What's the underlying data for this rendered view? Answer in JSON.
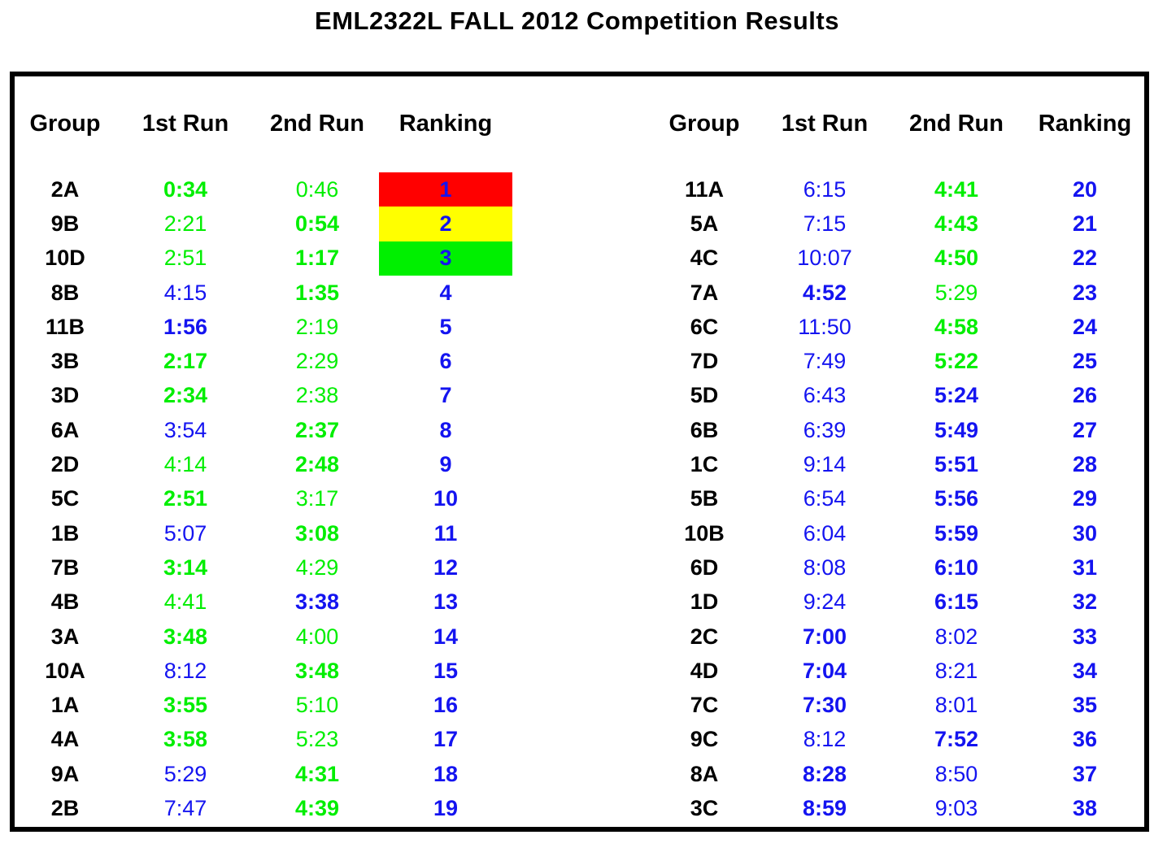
{
  "title": "EML2322L FALL 2012 Competition Results",
  "columns": {
    "group": "Group",
    "run1": "1st Run",
    "run2": "2nd Run",
    "ranking": "Ranking"
  },
  "colors": {
    "time_green": "#00ee00",
    "time_blue": "#1414f0",
    "group_black": "#000000",
    "rank1_bg": "#ff0000",
    "rank2_bg": "#ffff00",
    "rank3_bg": "#00f000"
  },
  "left_table": {
    "rows": [
      {
        "group": "2A",
        "run1": {
          "t": "0:34",
          "c": "green",
          "b": true
        },
        "run2": {
          "t": "0:46",
          "c": "green",
          "b": false
        },
        "rank": {
          "v": "1",
          "bg": "red"
        }
      },
      {
        "group": "9B",
        "run1": {
          "t": "2:21",
          "c": "green",
          "b": false
        },
        "run2": {
          "t": "0:54",
          "c": "green",
          "b": true
        },
        "rank": {
          "v": "2",
          "bg": "yellow"
        }
      },
      {
        "group": "10D",
        "run1": {
          "t": "2:51",
          "c": "green",
          "b": false
        },
        "run2": {
          "t": "1:17",
          "c": "green",
          "b": true
        },
        "rank": {
          "v": "3",
          "bg": "green"
        }
      },
      {
        "group": "8B",
        "run1": {
          "t": "4:15",
          "c": "blue",
          "b": false
        },
        "run2": {
          "t": "1:35",
          "c": "green",
          "b": true
        },
        "rank": {
          "v": "4",
          "bg": null
        }
      },
      {
        "group": "11B",
        "run1": {
          "t": "1:56",
          "c": "blue",
          "b": true
        },
        "run2": {
          "t": "2:19",
          "c": "green",
          "b": false
        },
        "rank": {
          "v": "5",
          "bg": null
        }
      },
      {
        "group": "3B",
        "run1": {
          "t": "2:17",
          "c": "green",
          "b": true
        },
        "run2": {
          "t": "2:29",
          "c": "green",
          "b": false
        },
        "rank": {
          "v": "6",
          "bg": null
        }
      },
      {
        "group": "3D",
        "run1": {
          "t": "2:34",
          "c": "green",
          "b": true
        },
        "run2": {
          "t": "2:38",
          "c": "green",
          "b": false
        },
        "rank": {
          "v": "7",
          "bg": null
        }
      },
      {
        "group": "6A",
        "run1": {
          "t": "3:54",
          "c": "blue",
          "b": false
        },
        "run2": {
          "t": "2:37",
          "c": "green",
          "b": true
        },
        "rank": {
          "v": "8",
          "bg": null
        }
      },
      {
        "group": "2D",
        "run1": {
          "t": "4:14",
          "c": "green",
          "b": false
        },
        "run2": {
          "t": "2:48",
          "c": "green",
          "b": true
        },
        "rank": {
          "v": "9",
          "bg": null
        }
      },
      {
        "group": "5C",
        "run1": {
          "t": "2:51",
          "c": "green",
          "b": true
        },
        "run2": {
          "t": "3:17",
          "c": "green",
          "b": false
        },
        "rank": {
          "v": "10",
          "bg": null
        }
      },
      {
        "group": "1B",
        "run1": {
          "t": "5:07",
          "c": "blue",
          "b": false
        },
        "run2": {
          "t": "3:08",
          "c": "green",
          "b": true
        },
        "rank": {
          "v": "11",
          "bg": null
        }
      },
      {
        "group": "7B",
        "run1": {
          "t": "3:14",
          "c": "green",
          "b": true
        },
        "run2": {
          "t": "4:29",
          "c": "green",
          "b": false
        },
        "rank": {
          "v": "12",
          "bg": null
        }
      },
      {
        "group": "4B",
        "run1": {
          "t": "4:41",
          "c": "green",
          "b": false
        },
        "run2": {
          "t": "3:38",
          "c": "blue",
          "b": true
        },
        "rank": {
          "v": "13",
          "bg": null
        }
      },
      {
        "group": "3A",
        "run1": {
          "t": "3:48",
          "c": "green",
          "b": true
        },
        "run2": {
          "t": "4:00",
          "c": "green",
          "b": false
        },
        "rank": {
          "v": "14",
          "bg": null
        }
      },
      {
        "group": "10A",
        "run1": {
          "t": "8:12",
          "c": "blue",
          "b": false
        },
        "run2": {
          "t": "3:48",
          "c": "green",
          "b": true
        },
        "rank": {
          "v": "15",
          "bg": null
        }
      },
      {
        "group": "1A",
        "run1": {
          "t": "3:55",
          "c": "green",
          "b": true
        },
        "run2": {
          "t": "5:10",
          "c": "green",
          "b": false
        },
        "rank": {
          "v": "16",
          "bg": null
        }
      },
      {
        "group": "4A",
        "run1": {
          "t": "3:58",
          "c": "green",
          "b": true
        },
        "run2": {
          "t": "5:23",
          "c": "green",
          "b": false
        },
        "rank": {
          "v": "17",
          "bg": null
        }
      },
      {
        "group": "9A",
        "run1": {
          "t": "5:29",
          "c": "blue",
          "b": false
        },
        "run2": {
          "t": "4:31",
          "c": "green",
          "b": true
        },
        "rank": {
          "v": "18",
          "bg": null
        }
      },
      {
        "group": "2B",
        "run1": {
          "t": "7:47",
          "c": "blue",
          "b": false
        },
        "run2": {
          "t": "4:39",
          "c": "green",
          "b": true
        },
        "rank": {
          "v": "19",
          "bg": null
        }
      }
    ]
  },
  "right_table": {
    "rows": [
      {
        "group": "11A",
        "run1": {
          "t": "6:15",
          "c": "blue",
          "b": false
        },
        "run2": {
          "t": "4:41",
          "c": "green",
          "b": true
        },
        "rank": {
          "v": "20",
          "bg": null
        }
      },
      {
        "group": "5A",
        "run1": {
          "t": "7:15",
          "c": "blue",
          "b": false
        },
        "run2": {
          "t": "4:43",
          "c": "green",
          "b": true
        },
        "rank": {
          "v": "21",
          "bg": null
        }
      },
      {
        "group": "4C",
        "run1": {
          "t": "10:07",
          "c": "blue",
          "b": false
        },
        "run2": {
          "t": "4:50",
          "c": "green",
          "b": true
        },
        "rank": {
          "v": "22",
          "bg": null
        }
      },
      {
        "group": "7A",
        "run1": {
          "t": "4:52",
          "c": "blue",
          "b": true
        },
        "run2": {
          "t": "5:29",
          "c": "green",
          "b": false
        },
        "rank": {
          "v": "23",
          "bg": null
        }
      },
      {
        "group": "6C",
        "run1": {
          "t": "11:50",
          "c": "blue",
          "b": false
        },
        "run2": {
          "t": "4:58",
          "c": "green",
          "b": true
        },
        "rank": {
          "v": "24",
          "bg": null
        }
      },
      {
        "group": "7D",
        "run1": {
          "t": "7:49",
          "c": "blue",
          "b": false
        },
        "run2": {
          "t": "5:22",
          "c": "green",
          "b": true
        },
        "rank": {
          "v": "25",
          "bg": null
        }
      },
      {
        "group": "5D",
        "run1": {
          "t": "6:43",
          "c": "blue",
          "b": false
        },
        "run2": {
          "t": "5:24",
          "c": "blue",
          "b": true
        },
        "rank": {
          "v": "26",
          "bg": null
        }
      },
      {
        "group": "6B",
        "run1": {
          "t": "6:39",
          "c": "blue",
          "b": false
        },
        "run2": {
          "t": "5:49",
          "c": "blue",
          "b": true
        },
        "rank": {
          "v": "27",
          "bg": null
        }
      },
      {
        "group": "1C",
        "run1": {
          "t": "9:14",
          "c": "blue",
          "b": false
        },
        "run2": {
          "t": "5:51",
          "c": "blue",
          "b": true
        },
        "rank": {
          "v": "28",
          "bg": null
        }
      },
      {
        "group": "5B",
        "run1": {
          "t": "6:54",
          "c": "blue",
          "b": false
        },
        "run2": {
          "t": "5:56",
          "c": "blue",
          "b": true
        },
        "rank": {
          "v": "29",
          "bg": null
        }
      },
      {
        "group": "10B",
        "run1": {
          "t": "6:04",
          "c": "blue",
          "b": false
        },
        "run2": {
          "t": "5:59",
          "c": "blue",
          "b": true
        },
        "rank": {
          "v": "30",
          "bg": null
        }
      },
      {
        "group": "6D",
        "run1": {
          "t": "8:08",
          "c": "blue",
          "b": false
        },
        "run2": {
          "t": "6:10",
          "c": "blue",
          "b": true
        },
        "rank": {
          "v": "31",
          "bg": null
        }
      },
      {
        "group": "1D",
        "run1": {
          "t": "9:24",
          "c": "blue",
          "b": false
        },
        "run2": {
          "t": "6:15",
          "c": "blue",
          "b": true
        },
        "rank": {
          "v": "32",
          "bg": null
        }
      },
      {
        "group": "2C",
        "run1": {
          "t": "7:00",
          "c": "blue",
          "b": true
        },
        "run2": {
          "t": "8:02",
          "c": "blue",
          "b": false
        },
        "rank": {
          "v": "33",
          "bg": null
        }
      },
      {
        "group": "4D",
        "run1": {
          "t": "7:04",
          "c": "blue",
          "b": true
        },
        "run2": {
          "t": "8:21",
          "c": "blue",
          "b": false
        },
        "rank": {
          "v": "34",
          "bg": null
        }
      },
      {
        "group": "7C",
        "run1": {
          "t": "7:30",
          "c": "blue",
          "b": true
        },
        "run2": {
          "t": "8:01",
          "c": "blue",
          "b": false
        },
        "rank": {
          "v": "35",
          "bg": null
        }
      },
      {
        "group": "9C",
        "run1": {
          "t": "8:12",
          "c": "blue",
          "b": false
        },
        "run2": {
          "t": "7:52",
          "c": "blue",
          "b": true
        },
        "rank": {
          "v": "36",
          "bg": null
        }
      },
      {
        "group": "8A",
        "run1": {
          "t": "8:28",
          "c": "blue",
          "b": true
        },
        "run2": {
          "t": "8:50",
          "c": "blue",
          "b": false
        },
        "rank": {
          "v": "37",
          "bg": null
        }
      },
      {
        "group": "3C",
        "run1": {
          "t": "8:59",
          "c": "blue",
          "b": true
        },
        "run2": {
          "t": "9:03",
          "c": "blue",
          "b": false
        },
        "rank": {
          "v": "38",
          "bg": null
        }
      }
    ]
  }
}
